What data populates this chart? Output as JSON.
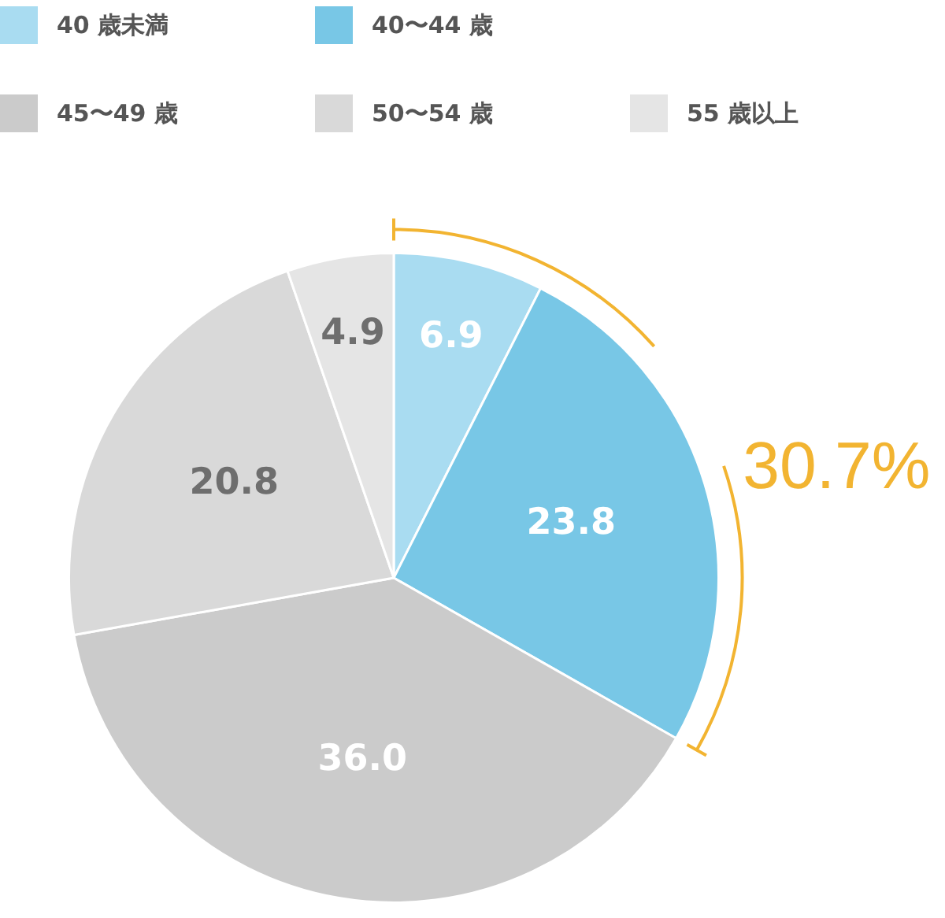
{
  "chart_data": {
    "type": "pie",
    "categories": [
      "40 歳未満",
      "40〜44 歳",
      "45〜49 歳",
      "50〜54 歳",
      "55 歳以上"
    ],
    "values": [
      6.9,
      23.8,
      36.0,
      20.8,
      4.9
    ],
    "colors": [
      "#a9dcf1",
      "#78c7e6",
      "#cbcbcb",
      "#d9d9d9",
      "#e5e5e5"
    ],
    "value_labels": [
      "6.9",
      "23.8",
      "36.0",
      "20.8",
      "4.9"
    ],
    "annotations": [
      "30.7%"
    ],
    "legend": "top"
  }
}
